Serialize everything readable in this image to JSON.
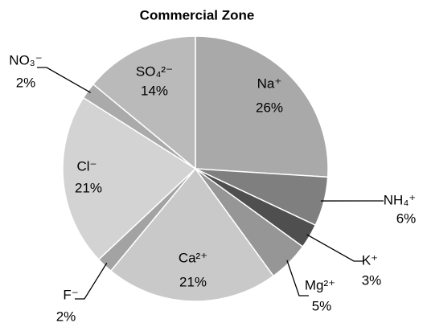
{
  "chart_data": {
    "type": "pie",
    "title": "Commercial Zone",
    "categories": [
      "Na⁺",
      "NH₄⁺",
      "K⁺",
      "Mg²⁺",
      "Ca²⁺",
      "F⁻",
      "Cl⁻",
      "NO₃⁻",
      "SO₄²⁻"
    ],
    "values": [
      26,
      6,
      3,
      5,
      21,
      2,
      21,
      2,
      14
    ],
    "value_labels": [
      "26%",
      "6%",
      "3%",
      "5%",
      "21%",
      "2%",
      "21%",
      "2%",
      "14%"
    ],
    "colors": [
      "#a9a9a9",
      "#7f7f7f",
      "#4f4f4f",
      "#969696",
      "#c9c9c9",
      "#a3a3a3",
      "#d3d3d3",
      "#aaaaaa",
      "#bababa"
    ]
  }
}
